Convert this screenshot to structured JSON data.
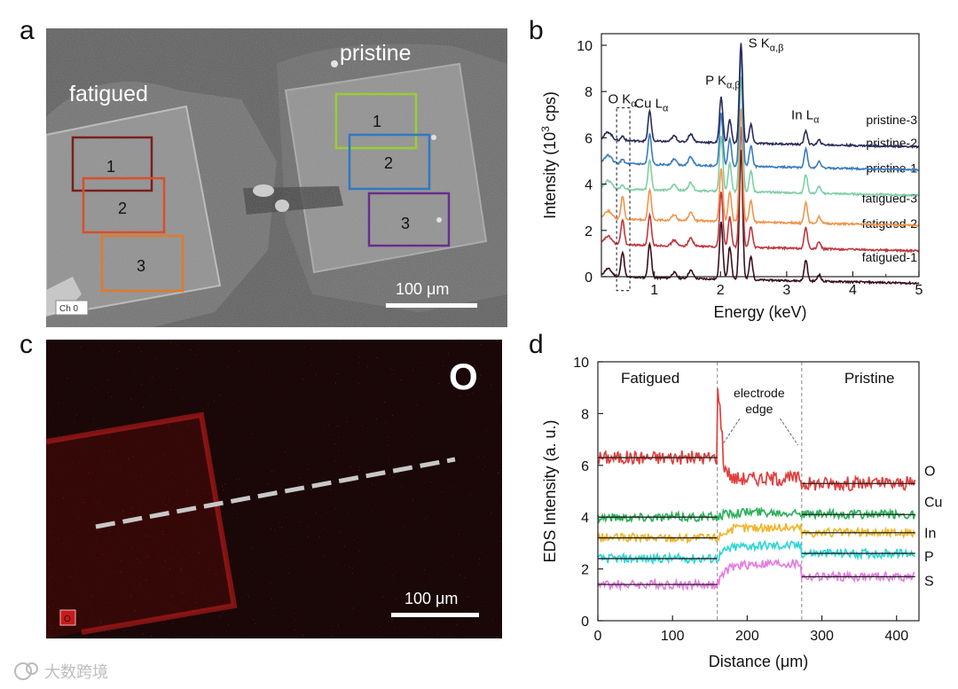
{
  "panels": {
    "a": {
      "letter": "a",
      "label_fatigued": "fatigued",
      "label_pristine": "pristine",
      "fatigued_boxes": [
        {
          "label": "1",
          "color": "#7a1f1f"
        },
        {
          "label": "2",
          "color": "#d8502a"
        },
        {
          "label": "3",
          "color": "#e07b2a"
        }
      ],
      "pristine_boxes": [
        {
          "label": "1",
          "color": "#9acd32"
        },
        {
          "label": "2",
          "color": "#2f78c4"
        },
        {
          "label": "3",
          "color": "#6a2d8c"
        }
      ],
      "scalebar": "100 μm",
      "channel": "Ch 0"
    },
    "b": {
      "letter": "b"
    },
    "c": {
      "letter": "c",
      "element": "O",
      "scalebar": "100 μm",
      "tag": "O"
    },
    "d": {
      "letter": "d"
    }
  },
  "watermark": "大数跨境",
  "chart_data": [
    {
      "panel": "b",
      "type": "line",
      "xlabel": "Energy (keV)",
      "ylabel_parts": [
        "Intensity (10",
        "3",
        " cps)"
      ],
      "xlim": [
        0.2,
        5
      ],
      "ylim": [
        0,
        10.5
      ],
      "xticks": [
        1,
        2,
        3,
        4,
        5
      ],
      "yticks": [
        0,
        2,
        4,
        6,
        8,
        10
      ],
      "annotations": [
        {
          "main": "O K",
          "sub": "α",
          "energy": 0.52
        },
        {
          "main": "Cu L",
          "sub": "α",
          "energy": 0.93
        },
        {
          "main": "P K",
          "sub": "α,β",
          "energy": 2.01
        },
        {
          "main": "S K",
          "sub": "α,β",
          "energy": 2.31
        },
        {
          "main": "In L",
          "sub": "α",
          "energy": 3.29
        }
      ],
      "peak_energies_keV": [
        0.52,
        0.93,
        2.01,
        2.14,
        2.31,
        2.46,
        3.29,
        3.49
      ],
      "series": [
        {
          "name": "fatigued-1",
          "color": "#3b0f1c",
          "baseline": 0.0,
          "peaks": [
            1.1,
            1.5,
            2.5,
            1.4,
            5.6,
            1.0,
            0.9,
            0.3
          ]
        },
        {
          "name": "fatigued-2",
          "color": "#c0363c",
          "baseline": 1.4,
          "peaks": [
            1.1,
            1.3,
            2.4,
            1.3,
            5.2,
            0.9,
            0.9,
            0.3
          ]
        },
        {
          "name": "fatigued-3",
          "color": "#f0954c",
          "baseline": 2.5,
          "peaks": [
            1.0,
            1.3,
            2.3,
            1.3,
            4.9,
            0.9,
            0.9,
            0.3
          ]
        },
        {
          "name": "pristine-1",
          "color": "#7fcfa5",
          "baseline": 3.8,
          "peaks": [
            0.2,
            1.3,
            2.4,
            1.2,
            5.0,
            0.9,
            0.8,
            0.3
          ]
        },
        {
          "name": "pristine-2",
          "color": "#3b7bbf",
          "baseline": 4.9,
          "peaks": [
            0.2,
            1.3,
            2.3,
            1.2,
            4.9,
            0.9,
            0.8,
            0.3
          ]
        },
        {
          "name": "pristine-3",
          "color": "#2a2c5a",
          "baseline": 5.9,
          "peaks": [
            0.2,
            1.3,
            2.0,
            1.0,
            4.3,
            0.8,
            0.6,
            0.2
          ]
        }
      ]
    },
    {
      "panel": "d",
      "type": "line",
      "xlabel": "Distance (μm)",
      "ylabel": "EDS Intensity (a. u.)",
      "xlim": [
        0,
        430
      ],
      "ylim": [
        0,
        10
      ],
      "xticks": [
        0,
        100,
        200,
        300,
        400
      ],
      "yticks": [
        0,
        2,
        4,
        6,
        8,
        10
      ],
      "edge_positions": [
        160,
        273
      ],
      "region_labels": [
        "Fatigued",
        "Pristine"
      ],
      "annotation": [
        "electrode",
        "edge"
      ],
      "series": [
        {
          "name": "O",
          "color": "#e0413f",
          "left_level": 6.3,
          "right_level": 5.3,
          "bump_peak": 9.0,
          "transition_to": 5.5
        },
        {
          "name": "Cu",
          "color": "#2db15b",
          "left_level": 4.0,
          "right_level": 4.1,
          "mid_level": 4.2
        },
        {
          "name": "In",
          "color": "#f2b52a",
          "left_level": 3.2,
          "right_level": 3.4,
          "mid_level": 3.6
        },
        {
          "name": "P",
          "color": "#2fd6d8",
          "left_level": 2.4,
          "right_level": 2.6,
          "mid_level": 2.9
        },
        {
          "name": "S",
          "color": "#e57ce0",
          "left_level": 1.4,
          "right_level": 1.7,
          "mid_level": 2.2
        }
      ]
    }
  ]
}
